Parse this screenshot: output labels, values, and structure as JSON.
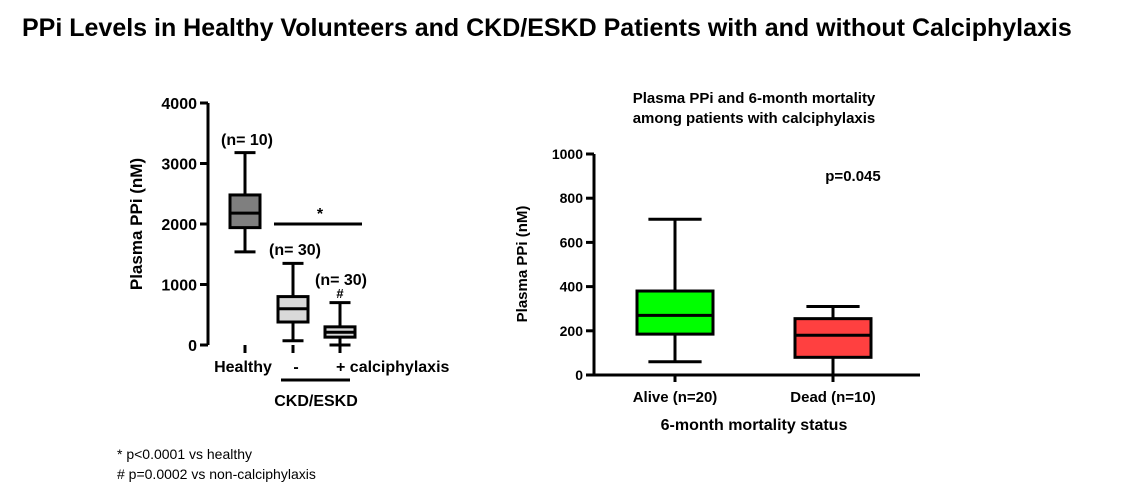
{
  "title": "PPi Levels in Healthy Volunteers and CKD/ESKD Patients with and without Calciphylaxis",
  "footnotes": [
    "* p<0.0001 vs healthy",
    "# p=0.0002 vs non-calciphylaxis"
  ],
  "chart_data": [
    {
      "type": "box",
      "title": "",
      "xlabel": "",
      "ylabel": "Plasma PPi (nM)",
      "ylim": [
        0,
        4000
      ],
      "yticks": [
        0,
        1000,
        2000,
        3000,
        4000
      ],
      "grid": false,
      "categories": [
        "Healthy",
        "-",
        "+ calciphylaxis"
      ],
      "group_label": "CKD/ESKD",
      "series": [
        {
          "name": "Healthy",
          "n_label": "(n= 10)",
          "min": 1540,
          "q1": 1940,
          "median": 2180,
          "q3": 2480,
          "max": 3180,
          "color": "#7f7f7f"
        },
        {
          "name": "-",
          "n_label": "(n= 30)",
          "min": 70,
          "q1": 380,
          "median": 600,
          "q3": 800,
          "max": 1350,
          "color": "#d9d9d9"
        },
        {
          "name": "+ calciphylaxis",
          "n_label": "(n= 30)",
          "min": 0,
          "q1": 130,
          "median": 210,
          "q3": 300,
          "max": 700,
          "color": "#d9d9d9"
        }
      ],
      "annotations": [
        {
          "text": "*",
          "type": "significance bar above CKD/ESKD groups"
        },
        {
          "text": "#",
          "type": "marker above + calciphylaxis box"
        }
      ]
    },
    {
      "type": "box",
      "title": "Plasma PPi and 6-month mortality among patients with calciphylaxis",
      "title_lines": [
        "Plasma PPi and 6-month mortality",
        "among patients with calciphylaxis"
      ],
      "xlabel": "6-month mortality status",
      "ylabel": "Plasma PPi (nM)",
      "ylim": [
        0,
        1000
      ],
      "yticks": [
        0,
        200,
        400,
        600,
        800,
        1000
      ],
      "grid": false,
      "categories": [
        "Alive (n=20)",
        "Dead (n=10)"
      ],
      "series": [
        {
          "name": "Alive (n=20)",
          "min": 60,
          "q1": 185,
          "median": 270,
          "q3": 380,
          "max": 705,
          "color": "#00ff00"
        },
        {
          "name": "Dead (n=10)",
          "min": 0,
          "q1": 80,
          "median": 180,
          "q3": 255,
          "max": 310,
          "color": "#ff4040"
        }
      ],
      "annotations": [
        {
          "text": "p=0.045",
          "position": "top-right"
        }
      ]
    }
  ]
}
